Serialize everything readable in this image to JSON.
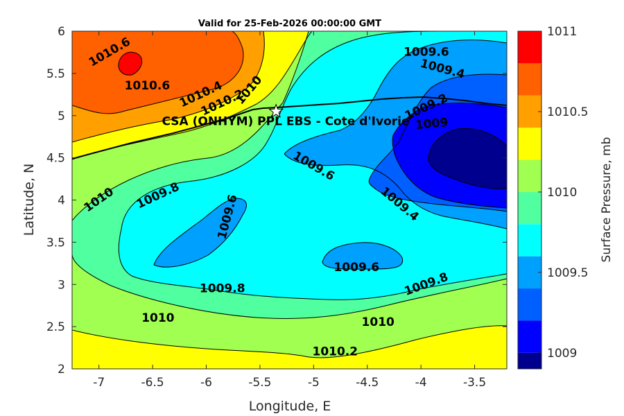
{
  "chart_data": {
    "type": "filled-contour",
    "title": "Valid for 25-Feb-2026 00:00:00 GMT",
    "xlabel": "Longitude, E",
    "ylabel": "Latitude, N",
    "xlim": [
      -7.25,
      -3.2
    ],
    "ylim": [
      2,
      6
    ],
    "xticks": [
      "-7",
      "-6.5",
      "-6",
      "-5.5",
      "-5",
      "-4.5",
      "-4",
      "-3.5"
    ],
    "yticks": [
      "2",
      "2.5",
      "3",
      "3.5",
      "4",
      "4.5",
      "5",
      "5.5",
      "6"
    ],
    "colorbar": {
      "label": "Surface Pressure, mb",
      "ticks": [
        "1009",
        "1009.5",
        "1010",
        "1010.5",
        "1011"
      ],
      "levels": [
        1008.9,
        1009,
        1009.2,
        1009.4,
        1009.6,
        1009.8,
        1010,
        1010.2,
        1010.4,
        1010.6,
        1010.8,
        1011
      ],
      "colors": [
        "#00008f",
        "#0000ff",
        "#0060ff",
        "#00a0ff",
        "#00ffff",
        "#50ff9f",
        "#a0ff50",
        "#ffff00",
        "#ffa000",
        "#ff6000",
        "#ff0000",
        "#a00000"
      ]
    },
    "contour_labels": [
      {
        "text": "1010.6",
        "lon": -6.9,
        "lat": 5.75,
        "angle": -30
      },
      {
        "text": "1010.6",
        "lon": -6.55,
        "lat": 5.35,
        "angle": 0
      },
      {
        "text": "1010.4",
        "lon": -6.05,
        "lat": 5.25,
        "angle": -25
      },
      {
        "text": "1010.2",
        "lon": -5.85,
        "lat": 5.15,
        "angle": -25
      },
      {
        "text": "1010",
        "lon": -5.6,
        "lat": 5.3,
        "angle": -50
      },
      {
        "text": "1009.6",
        "lon": -3.95,
        "lat": 5.75,
        "angle": 0
      },
      {
        "text": "1009.4",
        "lon": -3.8,
        "lat": 5.55,
        "angle": 15
      },
      {
        "text": "1009.2",
        "lon": -3.95,
        "lat": 5.1,
        "angle": -25
      },
      {
        "text": "1009",
        "lon": -3.9,
        "lat": 4.9,
        "angle": -5
      },
      {
        "text": "1009.6",
        "lon": -5.0,
        "lat": 4.4,
        "angle": 30
      },
      {
        "text": "1009.4",
        "lon": -4.2,
        "lat": 3.95,
        "angle": 40
      },
      {
        "text": "1010",
        "lon": -7.0,
        "lat": 4.0,
        "angle": -35
      },
      {
        "text": "1009.8",
        "lon": -6.45,
        "lat": 4.05,
        "angle": -25
      },
      {
        "text": "1009.6",
        "lon": -5.8,
        "lat": 3.8,
        "angle": -75
      },
      {
        "text": "1009.6",
        "lon": -4.6,
        "lat": 3.2,
        "angle": 0
      },
      {
        "text": "1009.8",
        "lon": -5.85,
        "lat": 2.95,
        "angle": 0
      },
      {
        "text": "1009.8",
        "lon": -3.95,
        "lat": 3.0,
        "angle": -20
      },
      {
        "text": "1010",
        "lon": -6.45,
        "lat": 2.6,
        "angle": 0
      },
      {
        "text": "1010",
        "lon": -4.4,
        "lat": 2.55,
        "angle": 0
      },
      {
        "text": "1010.2",
        "lon": -4.8,
        "lat": 2.2,
        "angle": 0
      }
    ],
    "site": {
      "name": "CSA (ONHYM) PPL EBS  - Cote d'Ivorie",
      "lon": -5.35,
      "lat": 5.05
    }
  }
}
